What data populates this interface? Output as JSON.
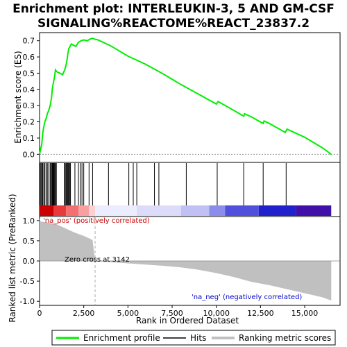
{
  "title_line1": "Enrichment plot: INTERLEUKIN-3, 5 AND GM-CSF",
  "title_line2": "SIGNALING%REACTOME%REACT_23837.2",
  "legend": {
    "enrichment_profile": "Enrichment profile",
    "hits": "Hits",
    "ranking_metric_scores": "Ranking metric scores"
  },
  "annotations": {
    "na_pos": "'na_pos' (positively correlated)",
    "na_neg": "'na_neg' (negatively correlated)",
    "zero_cross": "Zero cross at 3142"
  },
  "colors": {
    "enrichment_line": "#00ee00",
    "hits": "#000000",
    "metric_fill": "#c0c0c0",
    "na_pos": "#cc0000",
    "na_neg": "#0000cc",
    "zero_cross_line": "#aaaaaa"
  },
  "chart_data": [
    {
      "type": "line",
      "name": "enrichment-score-panel",
      "ylabel": "Enrichment score (ES)",
      "xlim": [
        0,
        17000
      ],
      "ylim": [
        -0.05,
        0.75
      ],
      "yticks": [
        0.0,
        0.1,
        0.2,
        0.3,
        0.4,
        0.5,
        0.6,
        0.7
      ],
      "ytick_labels": [
        "0.0",
        "0.1",
        "0.2",
        "0.3",
        "0.4",
        "0.5",
        "0.6",
        "0.7"
      ],
      "series": [
        {
          "x": [
            0,
            60,
            120,
            180,
            240,
            300,
            370,
            440,
            520,
            600,
            680,
            720,
            760,
            800,
            850,
            900,
            960,
            1050,
            1150,
            1300,
            1420,
            1500,
            1550,
            1600,
            1650,
            1700,
            1800,
            2050,
            2200,
            2350,
            2500,
            2700,
            2850,
            3000,
            3100,
            3300,
            4000,
            5000,
            6000,
            7000,
            8000,
            9000,
            10000,
            10100,
            11000,
            11550,
            11600,
            12000,
            12650,
            12700,
            13000,
            13900,
            14000,
            15000,
            16000,
            16500
          ],
          "y": [
            0.0,
            0.03,
            0.06,
            0.13,
            0.17,
            0.2,
            0.22,
            0.25,
            0.27,
            0.3,
            0.35,
            0.4,
            0.43,
            0.45,
            0.48,
            0.52,
            0.51,
            0.505,
            0.5,
            0.49,
            0.52,
            0.55,
            0.58,
            0.62,
            0.65,
            0.66,
            0.68,
            0.665,
            0.69,
            0.7,
            0.705,
            0.7,
            0.71,
            0.715,
            0.71,
            0.705,
            0.67,
            0.605,
            0.555,
            0.495,
            0.43,
            0.37,
            0.31,
            0.325,
            0.27,
            0.235,
            0.25,
            0.23,
            0.19,
            0.205,
            0.19,
            0.135,
            0.155,
            0.105,
            0.04,
            0.0
          ]
        }
      ]
    },
    {
      "type": "bar",
      "name": "hits-panel",
      "hit_positions": [
        30,
        80,
        130,
        180,
        240,
        300,
        370,
        440,
        520,
        600,
        650,
        700,
        730,
        760,
        790,
        820,
        860,
        900,
        950,
        1400,
        1450,
        1500,
        1540,
        1580,
        1620,
        1660,
        1700,
        1750,
        2000,
        2200,
        2300,
        2400,
        2500,
        2800,
        3000,
        3900,
        5050,
        5300,
        5500,
        6500,
        6750,
        8300,
        10050,
        11550,
        12650,
        13950
      ]
    },
    {
      "type": "area",
      "name": "ranked-metric-panel",
      "xlabel": "Rank in Ordered Dataset",
      "ylabel": "Ranked list metric (PreRanked)",
      "xlim": [
        0,
        17000
      ],
      "ylim": [
        -1.1,
        1.1
      ],
      "yticks": [
        -1.0,
        -0.5,
        0.0,
        0.5,
        1.0
      ],
      "ytick_labels": [
        "-1.0",
        "-0.5",
        "0.0",
        "0.5",
        "1.0"
      ],
      "xticks": [
        0,
        2500,
        5000,
        7500,
        10000,
        12500,
        15000
      ],
      "xtick_labels": [
        "0",
        "2,500",
        "5,000",
        "7,500",
        "10,000",
        "12,500",
        "15,000"
      ],
      "zero_cross": 3142,
      "series": [
        {
          "x": [
            0,
            50,
            200,
            500,
            1000,
            1500,
            2000,
            2500,
            3000,
            3142,
            3300,
            4000,
            5000,
            6000,
            7000,
            8000,
            9000,
            10000,
            11000,
            12000,
            13000,
            14000,
            15000,
            16000,
            16500
          ],
          "y": [
            1.05,
            0.98,
            0.97,
            0.95,
            0.9,
            0.8,
            0.7,
            0.62,
            0.52,
            0.0,
            -0.01,
            -0.03,
            -0.06,
            -0.09,
            -0.12,
            -0.16,
            -0.22,
            -0.3,
            -0.4,
            -0.52,
            -0.6,
            -0.7,
            -0.8,
            -0.9,
            -0.98
          ]
        }
      ]
    }
  ]
}
